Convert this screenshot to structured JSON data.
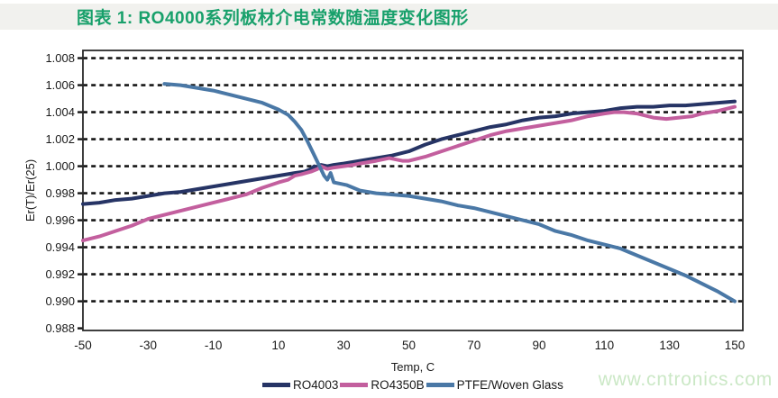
{
  "caption": {
    "text": "图表 1:  RO4000系列板材介电常数随温度变化图形"
  },
  "watermark": {
    "text": "www.cntronics.com"
  },
  "palette": {
    "caption_green": "#18a06b",
    "caption_bar_bg": "#f1f1ee",
    "watermark_green": "#cbe8c6",
    "grid_color": "#161616",
    "axis_text_color": "#1a1a1a",
    "plot_border_color": "#2a2a2a",
    "background": "#ffffff"
  },
  "chart_data": {
    "type": "line",
    "title": "",
    "xlabel": "Temp, C",
    "ylabel": "Er(T)/Er(25)",
    "xlim": [
      -50,
      152.5
    ],
    "ylim": [
      0.98784,
      1.00857
    ],
    "grid": "horizontal-dashed-black",
    "legend_position": "bottom-center",
    "x_ticks": [
      -50,
      -30,
      -10,
      10,
      30,
      50,
      70,
      90,
      110,
      130,
      150
    ],
    "y_ticks": [
      1.008,
      1.006,
      1.004,
      1.002,
      1.0,
      0.998,
      0.996,
      0.994,
      0.992,
      0.99,
      0.988
    ],
    "y_tick_labels": [
      "1.008",
      "1.006",
      "1.004",
      "1.002",
      "1.000",
      "0.998",
      "0.996",
      "0.994",
      "0.992",
      "0.990",
      "0.988"
    ],
    "series": [
      {
        "name": "RO4003",
        "color": "#263465",
        "points": [
          [
            -50,
            0.9972
          ],
          [
            -45,
            0.9973
          ],
          [
            -40,
            0.9975
          ],
          [
            -35,
            0.9976
          ],
          [
            -30,
            0.9978
          ],
          [
            -25,
            0.998
          ],
          [
            -20,
            0.9981
          ],
          [
            -15,
            0.9983
          ],
          [
            -10,
            0.9985
          ],
          [
            -5,
            0.9987
          ],
          [
            0,
            0.9989
          ],
          [
            5,
            0.9991
          ],
          [
            10,
            0.9993
          ],
          [
            15,
            0.9995
          ],
          [
            18,
            0.9996
          ],
          [
            20,
            0.9998
          ],
          [
            21,
            1.0
          ],
          [
            22,
            0.9999
          ],
          [
            23,
            1.0001
          ],
          [
            25,
            1.0
          ],
          [
            27,
            1.0001
          ],
          [
            30,
            1.0002
          ],
          [
            35,
            1.0004
          ],
          [
            40,
            1.0006
          ],
          [
            45,
            1.0008
          ],
          [
            50,
            1.0011
          ],
          [
            55,
            1.0016
          ],
          [
            60,
            1.002
          ],
          [
            65,
            1.0023
          ],
          [
            70,
            1.0026
          ],
          [
            75,
            1.0029
          ],
          [
            80,
            1.0031
          ],
          [
            85,
            1.0034
          ],
          [
            90,
            1.0036
          ],
          [
            95,
            1.0037
          ],
          [
            100,
            1.0039
          ],
          [
            105,
            1.004
          ],
          [
            110,
            1.0041
          ],
          [
            115,
            1.0043
          ],
          [
            120,
            1.0044
          ],
          [
            125,
            1.0044
          ],
          [
            130,
            1.0045
          ],
          [
            135,
            1.0045
          ],
          [
            140,
            1.0046
          ],
          [
            145,
            1.0047
          ],
          [
            150,
            1.0048
          ]
        ]
      },
      {
        "name": "RO4350B",
        "color": "#c35f9e",
        "points": [
          [
            -50,
            0.9945
          ],
          [
            -45,
            0.9948
          ],
          [
            -40,
            0.9952
          ],
          [
            -35,
            0.9956
          ],
          [
            -30,
            0.9961
          ],
          [
            -25,
            0.9964
          ],
          [
            -20,
            0.9967
          ],
          [
            -15,
            0.997
          ],
          [
            -10,
            0.9973
          ],
          [
            -5,
            0.9976
          ],
          [
            0,
            0.9979
          ],
          [
            5,
            0.9984
          ],
          [
            10,
            0.9988
          ],
          [
            13,
            0.999
          ],
          [
            15,
            0.9993
          ],
          [
            17,
            0.9994
          ],
          [
            20,
            0.9996
          ],
          [
            22,
            0.9998
          ],
          [
            23,
            1.0
          ],
          [
            25,
            0.9998
          ],
          [
            27,
            0.9999
          ],
          [
            30,
            1.0
          ],
          [
            33,
            1.0001
          ],
          [
            35,
            1.0002
          ],
          [
            40,
            1.0004
          ],
          [
            44,
            1.0006
          ],
          [
            48,
            1.0004
          ],
          [
            50,
            1.0004
          ],
          [
            55,
            1.0007
          ],
          [
            60,
            1.0011
          ],
          [
            65,
            1.0015
          ],
          [
            70,
            1.0019
          ],
          [
            75,
            1.0023
          ],
          [
            80,
            1.0026
          ],
          [
            85,
            1.0028
          ],
          [
            90,
            1.003
          ],
          [
            95,
            1.0032
          ],
          [
            100,
            1.0034
          ],
          [
            105,
            1.0037
          ],
          [
            110,
            1.0039
          ],
          [
            113,
            1.004
          ],
          [
            116,
            1.004
          ],
          [
            120,
            1.0039
          ],
          [
            125,
            1.0036
          ],
          [
            129,
            1.0035
          ],
          [
            133,
            1.0036
          ],
          [
            137,
            1.0037
          ],
          [
            140,
            1.0039
          ],
          [
            145,
            1.0041
          ],
          [
            150,
            1.0044
          ]
        ]
      },
      {
        "name": "PTFE/Woven Glass",
        "color": "#4a78a6",
        "points": [
          [
            -25,
            1.0061
          ],
          [
            -20,
            1.006
          ],
          [
            -15,
            1.0058
          ],
          [
            -10,
            1.0056
          ],
          [
            -5,
            1.0053
          ],
          [
            0,
            1.005
          ],
          [
            5,
            1.0047
          ],
          [
            10,
            1.0042
          ],
          [
            13,
            1.0038
          ],
          [
            15,
            1.0033
          ],
          [
            17,
            1.0027
          ],
          [
            19,
            1.0018
          ],
          [
            21,
            1.0008
          ],
          [
            23,
            0.9998
          ],
          [
            24,
            0.9993
          ],
          [
            25,
            0.999
          ],
          [
            26,
            0.9995
          ],
          [
            27,
            0.9988
          ],
          [
            29,
            0.9987
          ],
          [
            31,
            0.9986
          ],
          [
            35,
            0.9982
          ],
          [
            40,
            0.998
          ],
          [
            45,
            0.9979
          ],
          [
            50,
            0.9978
          ],
          [
            55,
            0.9976
          ],
          [
            60,
            0.9974
          ],
          [
            65,
            0.9971
          ],
          [
            70,
            0.9969
          ],
          [
            75,
            0.9966
          ],
          [
            80,
            0.9963
          ],
          [
            85,
            0.996
          ],
          [
            90,
            0.9957
          ],
          [
            95,
            0.9952
          ],
          [
            100,
            0.9949
          ],
          [
            105,
            0.9945
          ],
          [
            110,
            0.9942
          ],
          [
            115,
            0.9939
          ],
          [
            120,
            0.9934
          ],
          [
            125,
            0.9929
          ],
          [
            130,
            0.9924
          ],
          [
            135,
            0.9919
          ],
          [
            140,
            0.9913
          ],
          [
            145,
            0.9907
          ],
          [
            150,
            0.99
          ]
        ]
      }
    ]
  }
}
